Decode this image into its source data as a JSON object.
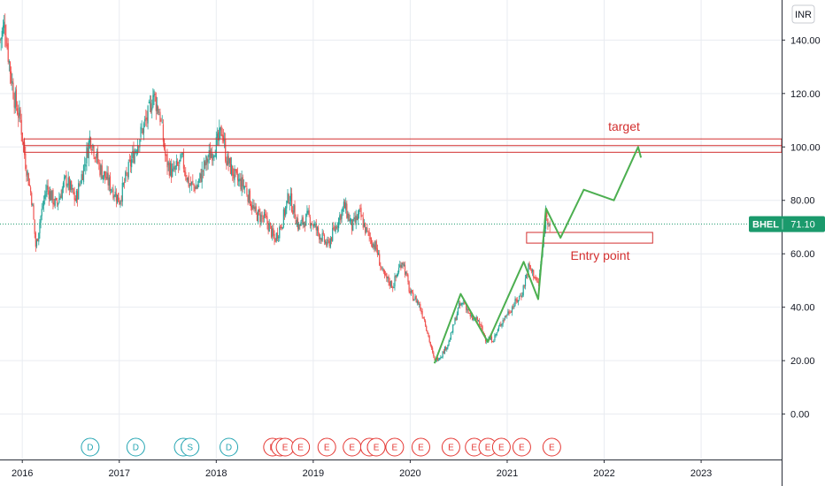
{
  "chart_data": {
    "type": "candlestick",
    "symbol": "BHEL",
    "currency": "INR",
    "last_price": "71.10",
    "y_ticks": [
      "0.00",
      "20.00",
      "40.00",
      "60.00",
      "80.00",
      "100.00",
      "120.00",
      "140.00"
    ],
    "ylim": [
      -17,
      155
    ],
    "x_ticks": [
      "2016",
      "2017",
      "2018",
      "2019",
      "2020",
      "2021",
      "2022",
      "2023"
    ],
    "xlim": [
      2015.77,
      2023.83
    ],
    "grid": true,
    "price_path": [
      [
        2015.77,
        140
      ],
      [
        2015.82,
        146
      ],
      [
        2015.87,
        130
      ],
      [
        2015.92,
        118
      ],
      [
        2015.98,
        110
      ],
      [
        2016.03,
        95
      ],
      [
        2016.1,
        80
      ],
      [
        2016.14,
        62
      ],
      [
        2016.18,
        72
      ],
      [
        2016.25,
        85
      ],
      [
        2016.35,
        78
      ],
      [
        2016.45,
        88
      ],
      [
        2016.55,
        80
      ],
      [
        2016.65,
        95
      ],
      [
        2016.7,
        104
      ],
      [
        2016.8,
        92
      ],
      [
        2016.9,
        86
      ],
      [
        2017.0,
        80
      ],
      [
        2017.1,
        92
      ],
      [
        2017.2,
        103
      ],
      [
        2017.3,
        112
      ],
      [
        2017.35,
        120
      ],
      [
        2017.42,
        112
      ],
      [
        2017.48,
        95
      ],
      [
        2017.55,
        90
      ],
      [
        2017.65,
        95
      ],
      [
        2017.72,
        86
      ],
      [
        2017.8,
        85
      ],
      [
        2017.88,
        93
      ],
      [
        2017.95,
        98
      ],
      [
        2018.02,
        102
      ],
      [
        2018.06,
        107
      ],
      [
        2018.1,
        96
      ],
      [
        2018.2,
        88
      ],
      [
        2018.3,
        85
      ],
      [
        2018.4,
        75
      ],
      [
        2018.5,
        73
      ],
      [
        2018.55,
        70
      ],
      [
        2018.6,
        65
      ],
      [
        2018.68,
        72
      ],
      [
        2018.75,
        82
      ],
      [
        2018.85,
        70
      ],
      [
        2018.95,
        74
      ],
      [
        2019.05,
        68
      ],
      [
        2019.15,
        63
      ],
      [
        2019.25,
        72
      ],
      [
        2019.32,
        78
      ],
      [
        2019.4,
        70
      ],
      [
        2019.48,
        75
      ],
      [
        2019.55,
        68
      ],
      [
        2019.65,
        62
      ],
      [
        2019.72,
        52
      ],
      [
        2019.82,
        48
      ],
      [
        2019.92,
        58
      ],
      [
        2020.0,
        45
      ],
      [
        2020.08,
        42
      ],
      [
        2020.15,
        35
      ],
      [
        2020.22,
        24
      ],
      [
        2020.25,
        20
      ],
      [
        2020.32,
        22
      ],
      [
        2020.4,
        27
      ],
      [
        2020.5,
        40
      ],
      [
        2020.56,
        42
      ],
      [
        2020.62,
        36
      ],
      [
        2020.7,
        35
      ],
      [
        2020.78,
        28
      ],
      [
        2020.86,
        28
      ],
      [
        2020.95,
        35
      ],
      [
        2021.05,
        40
      ],
      [
        2021.15,
        45
      ],
      [
        2021.22,
        55
      ],
      [
        2021.28,
        52
      ],
      [
        2021.32,
        48
      ],
      [
        2021.36,
        60
      ],
      [
        2021.4,
        76
      ],
      [
        2021.44,
        71.1
      ]
    ],
    "annotations": {
      "resistance_zone": {
        "y": [
          98,
          103
        ],
        "x": [
          2015.77,
          2023.83
        ]
      },
      "entry_zone": {
        "y": [
          64,
          68
        ],
        "x": [
          2021.2,
          2022.5
        ]
      },
      "wave_path": [
        [
          2020.25,
          19
        ],
        [
          2020.52,
          45
        ],
        [
          2020.8,
          27
        ],
        [
          2021.17,
          57
        ],
        [
          2021.32,
          43
        ],
        [
          2021.4,
          77
        ],
        [
          2021.55,
          66
        ],
        [
          2021.79,
          84
        ],
        [
          2022.1,
          80
        ],
        [
          2022.35,
          100
        ],
        [
          2022.38,
          96
        ]
      ],
      "target_label": "target",
      "entry_label": "Entry point"
    },
    "events": [
      {
        "type": "D",
        "x": 2016.7
      },
      {
        "type": "D",
        "x": 2017.17
      },
      {
        "type": "D",
        "x": 2017.66
      },
      {
        "type": "S",
        "x": 2017.73
      },
      {
        "type": "D",
        "x": 2018.13
      },
      {
        "type": "E",
        "x": 2018.58
      },
      {
        "type": "E",
        "x": 2018.66
      },
      {
        "type": "E",
        "x": 2018.71
      },
      {
        "type": "E",
        "x": 2018.87
      },
      {
        "type": "E",
        "x": 2019.14
      },
      {
        "type": "E",
        "x": 2019.4
      },
      {
        "type": "E",
        "x": 2019.58
      },
      {
        "type": "E",
        "x": 2019.65
      },
      {
        "type": "E",
        "x": 2019.84
      },
      {
        "type": "E",
        "x": 2020.11
      },
      {
        "type": "E",
        "x": 2020.42
      },
      {
        "type": "E",
        "x": 2020.66
      },
      {
        "type": "E",
        "x": 2020.8
      },
      {
        "type": "E",
        "x": 2020.94
      },
      {
        "type": "E",
        "x": 2021.15
      },
      {
        "type": "E",
        "x": 2021.46
      }
    ],
    "colors": {
      "up": "#26a69a",
      "down": "#ef5350",
      "annotation": "#d32f2f",
      "wave": "#4caf50",
      "price_label": "#1b9a6c",
      "dividend_event": "#26a6b3",
      "earnings_event": "#e53935"
    }
  }
}
